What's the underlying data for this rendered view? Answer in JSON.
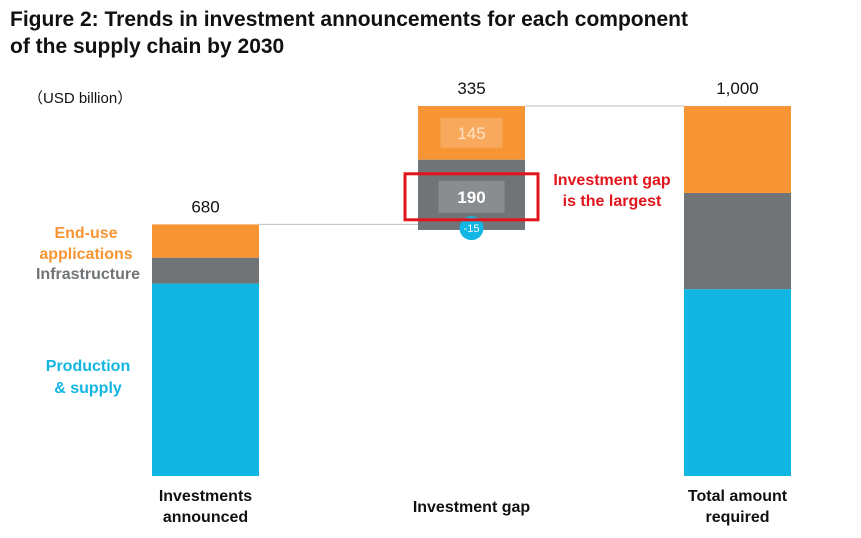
{
  "title": {
    "line1": "Figure 2: Trends in investment announcements for each component",
    "line2": "of the supply chain by 2030"
  },
  "unit_label": "（USD billion）",
  "colors": {
    "production": "#12b6e3",
    "infrastructure": "#707476",
    "end_use": "#f79433",
    "highlight": "#e2141c"
  },
  "chart_data": {
    "type": "bar",
    "stacked": true,
    "waterfall": true,
    "categories_lines": [
      [
        "Investments",
        "announced"
      ],
      [
        "Investment gap"
      ],
      [
        "Total amount",
        "required"
      ]
    ],
    "ylim": [
      0,
      1000
    ],
    "totals": [
      "680",
      "335",
      "1,000"
    ],
    "series": [
      {
        "key": "production",
        "name_lines": [
          "Production",
          "& supply"
        ],
        "values": [
          520,
          -15,
          505
        ]
      },
      {
        "key": "infrastructure",
        "name_lines": [
          "Infrastructure"
        ],
        "values": [
          70,
          190,
          260
        ]
      },
      {
        "key": "end_use",
        "name_lines": [
          "End-use",
          "applications"
        ],
        "values": [
          90,
          145,
          235
        ]
      }
    ],
    "segment_labels": [
      {
        "bar": 1,
        "series": "end_use",
        "text": "145"
      },
      {
        "bar": 1,
        "series": "infrastructure",
        "text": "190"
      },
      {
        "bar": 1,
        "series": "production",
        "text": "-15"
      }
    ],
    "annotation_lines": [
      "Investment gap",
      "is the largest"
    ]
  }
}
